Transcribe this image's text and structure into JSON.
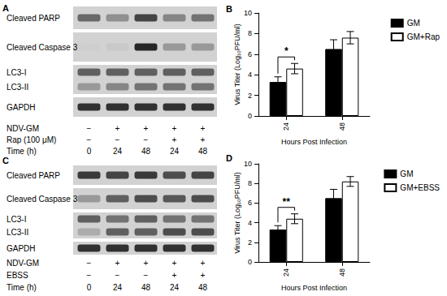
{
  "panel_labels": [
    "A",
    "B",
    "C",
    "D"
  ],
  "blots": [
    {
      "strips": [
        {
          "rows": [
            {
              "label": "Cleaved PARP",
              "intensity": [
                0.55,
                0.35,
                0.75,
                0.4,
                0.5
              ]
            }
          ]
        },
        {
          "rows": [
            {
              "label": "Cleaved Caspase 3",
              "intensity": [
                0.02,
                0.05,
                0.9,
                0.3,
                0.3
              ]
            }
          ]
        },
        {
          "rows": [
            {
              "label": "LC3-I",
              "intensity": [
                0.6,
                0.6,
                0.6,
                0.6,
                0.6
              ]
            },
            {
              "label": "LC3-II",
              "intensity": [
                0.3,
                0.4,
                0.5,
                0.5,
                0.5
              ]
            }
          ]
        },
        {
          "rows": [
            {
              "label": "GAPDH",
              "intensity": [
                0.85,
                0.85,
                0.85,
                0.85,
                0.85
              ]
            }
          ]
        }
      ],
      "conditions": [
        {
          "label": "NDV-GM",
          "values": [
            "−",
            "+",
            "+",
            "+",
            "+"
          ]
        },
        {
          "label": "Rap (100 μM)",
          "values": [
            "−",
            "−",
            "−",
            "+",
            "+"
          ]
        },
        {
          "label": "Time (h)",
          "values": [
            "0",
            "24",
            "48",
            "24",
            "48"
          ]
        }
      ]
    },
    {
      "strips": [
        {
          "rows": [
            {
              "label": "Cleaved PARP",
              "intensity": [
                0.8,
                0.75,
                0.8,
                0.7,
                0.75
              ]
            }
          ]
        },
        {
          "rows": [
            {
              "label": "Cleaved Caspase 3",
              "intensity": [
                0.3,
                0.6,
                0.7,
                0.65,
                0.7
              ]
            }
          ]
        },
        {
          "rows": [
            {
              "label": "LC3-I",
              "intensity": [
                0.6,
                0.5,
                0.6,
                0.5,
                0.5
              ]
            },
            {
              "label": "LC3-II",
              "intensity": [
                0.2,
                0.6,
                0.6,
                0.7,
                0.7
              ]
            }
          ]
        },
        {
          "rows": [
            {
              "label": "GAPDH",
              "intensity": [
                0.85,
                0.85,
                0.85,
                0.85,
                0.85
              ]
            }
          ]
        }
      ],
      "conditions": [
        {
          "label": "NDV-GM",
          "values": [
            "−",
            "+",
            "+",
            "+",
            "+"
          ]
        },
        {
          "label": "EBSS",
          "values": [
            "−",
            "−",
            "−",
            "+",
            "+"
          ]
        },
        {
          "label": "Time (h)",
          "values": [
            "0",
            "24",
            "48",
            "24",
            "48"
          ]
        }
      ]
    }
  ],
  "chart_data": [
    {
      "type": "bar",
      "categories": [
        "24",
        "48"
      ],
      "xlabel": "Hours Post Infection",
      "ylabel": "Virus Titer (Log₁₀PFU/ml)",
      "ylim": [
        0,
        10
      ],
      "yticks": [
        0,
        2,
        4,
        6,
        8,
        10
      ],
      "grid": false,
      "legend": "top-right",
      "series": [
        {
          "name": "GM",
          "color": "#000000",
          "values": [
            3.3,
            6.5
          ],
          "errors": [
            0.5,
            0.9
          ]
        },
        {
          "name": "GM+Rap",
          "color": "#ffffff",
          "values": [
            4.6,
            7.6
          ],
          "errors": [
            0.5,
            0.6
          ]
        }
      ],
      "annotations": [
        {
          "category": "24",
          "label": "*"
        }
      ]
    },
    {
      "type": "bar",
      "categories": [
        "24",
        "48"
      ],
      "xlabel": "Hours Post Infection",
      "ylabel": "Virus Titer (Log₁₀PFU/ml)",
      "ylim": [
        0,
        10
      ],
      "yticks": [
        0,
        2,
        4,
        6,
        8,
        10
      ],
      "grid": false,
      "legend": "top-right",
      "series": [
        {
          "name": "GM",
          "color": "#000000",
          "values": [
            3.3,
            6.5
          ],
          "errors": [
            0.4,
            0.9
          ]
        },
        {
          "name": "GM+EBSS",
          "color": "#ffffff",
          "values": [
            4.4,
            8.2
          ],
          "errors": [
            0.5,
            0.5
          ]
        }
      ],
      "annotations": [
        {
          "category": "24",
          "label": "**"
        }
      ]
    }
  ]
}
